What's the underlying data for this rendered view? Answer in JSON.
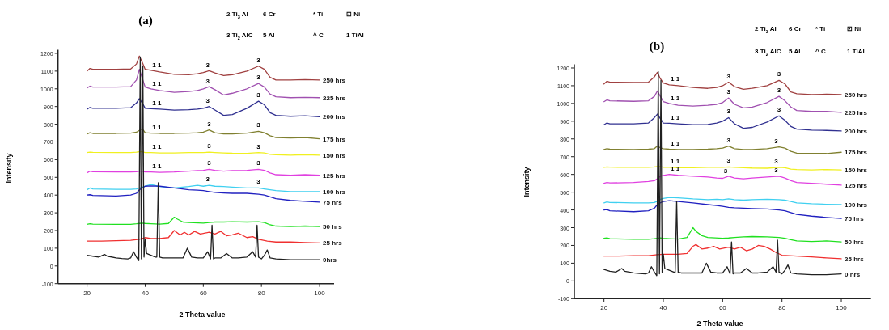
{
  "chart_data": [
    {
      "type": "line",
      "title": "(a)",
      "xlabel": "2 Theta value",
      "ylabel": "Intensity",
      "xlim": [
        10,
        105
      ],
      "xticks": [
        20,
        40,
        60,
        80,
        100
      ],
      "ylim": [
        -100,
        1220
      ],
      "yticks": [
        -100,
        0,
        100,
        200,
        300,
        400,
        500,
        600,
        700,
        800,
        900,
        1000,
        1100,
        1200
      ],
      "annotations": [
        "2 Ti$_{3}$Al",
        "6 Cr",
        "* Ti",
        "⊡ Ni",
        "3 Ti$_{2}$AlC",
        "5 Al",
        "^ C",
        "1 TiAl",
        {
          "text": "1 1",
          "x": 44,
          "y": 1098
        },
        {
          "text": "3",
          "x": 61.5,
          "y": 1100
        },
        {
          "text": "3",
          "x": 79,
          "y": 1128
        },
        {
          "text": "1 1",
          "x": 44,
          "y": 993
        },
        {
          "text": "3",
          "x": 61.5,
          "y": 1009
        },
        {
          "text": "3",
          "x": 79,
          "y": 1030
        },
        {
          "text": "1 1",
          "x": 44,
          "y": 886
        },
        {
          "text": "3",
          "x": 61.5,
          "y": 898
        },
        {
          "text": "3",
          "x": 79,
          "y": 930
        },
        {
          "text": "1 1",
          "x": 44,
          "y": 749
        },
        {
          "text": "3",
          "x": 62,
          "y": 768
        },
        {
          "text": "3",
          "x": 79,
          "y": 760
        },
        {
          "text": "1 1",
          "x": 44,
          "y": 639
        },
        {
          "text": "3",
          "x": 62,
          "y": 642
        },
        {
          "text": "3",
          "x": 79,
          "y": 640
        },
        {
          "text": "1 1",
          "x": 44,
          "y": 529
        },
        {
          "text": "3",
          "x": 62,
          "y": 545
        },
        {
          "text": "3",
          "x": 79,
          "y": 545
        },
        {
          "text": "3",
          "x": 61.5,
          "y": 454
        },
        {
          "text": "3",
          "x": 79,
          "y": 440
        }
      ],
      "series": [
        {
          "name": "250 hrs",
          "color": "#a04040",
          "x": [
            20,
            21,
            22,
            30,
            35,
            37,
            38,
            39,
            40,
            42,
            45,
            50,
            55,
            58,
            60,
            62,
            64,
            67,
            70,
            75,
            79,
            81,
            83,
            85,
            90,
            95,
            100
          ],
          "values": [
            1100,
            1115,
            1110,
            1110,
            1112,
            1140,
            1185,
            1150,
            1110,
            1105,
            1095,
            1082,
            1080,
            1085,
            1092,
            1102,
            1090,
            1075,
            1080,
            1100,
            1128,
            1110,
            1065,
            1050,
            1050,
            1052,
            1050
          ]
        },
        {
          "name": "225 hrs",
          "color": "#a050b0",
          "x": [
            20,
            21,
            22,
            30,
            35,
            37,
            38,
            39,
            40,
            42,
            45,
            50,
            55,
            58,
            60,
            62,
            64,
            67,
            70,
            75,
            79,
            81,
            83,
            85,
            90,
            95,
            100
          ],
          "values": [
            1005,
            1015,
            1010,
            1010,
            1012,
            1050,
            1110,
            1060,
            1010,
            1000,
            990,
            980,
            985,
            990,
            1000,
            1012,
            995,
            965,
            975,
            1000,
            1030,
            1010,
            970,
            955,
            950,
            952,
            950
          ]
        },
        {
          "name": "200 hrs",
          "color": "#303090",
          "x": [
            20,
            21,
            22,
            30,
            35,
            37,
            38,
            39,
            40,
            42,
            45,
            50,
            55,
            58,
            60,
            62,
            64,
            67,
            70,
            75,
            79,
            81,
            83,
            85,
            90,
            95,
            100
          ],
          "values": [
            885,
            895,
            890,
            890,
            893,
            920,
            945,
            920,
            890,
            888,
            885,
            880,
            882,
            885,
            890,
            900,
            880,
            850,
            855,
            890,
            930,
            910,
            865,
            850,
            845,
            848,
            842
          ]
        },
        {
          "name": "175 hrs",
          "color": "#808030",
          "x": [
            20,
            21,
            22,
            30,
            35,
            37,
            38,
            39,
            40,
            42,
            45,
            50,
            55,
            58,
            60,
            62,
            64,
            67,
            70,
            75,
            79,
            81,
            83,
            85,
            90,
            95,
            100
          ],
          "values": [
            745,
            752,
            748,
            748,
            750,
            755,
            765,
            775,
            752,
            750,
            748,
            748,
            750,
            752,
            755,
            768,
            752,
            745,
            745,
            750,
            760,
            752,
            735,
            725,
            722,
            725,
            718
          ]
        },
        {
          "name": "150 hrs",
          "color": "#f0f020",
          "x": [
            20,
            21,
            22,
            30,
            35,
            37,
            38,
            39,
            40,
            42,
            45,
            50,
            55,
            58,
            60,
            62,
            64,
            67,
            70,
            75,
            79,
            81,
            83,
            85,
            90,
            95,
            100
          ],
          "values": [
            640,
            642,
            641,
            640,
            640,
            642,
            645,
            645,
            640,
            640,
            638,
            638,
            640,
            640,
            640,
            642,
            640,
            638,
            636,
            635,
            640,
            638,
            630,
            628,
            625,
            628,
            625
          ]
        },
        {
          "name": "125 hrs",
          "color": "#e040e0",
          "x": [
            20,
            21,
            22,
            30,
            35,
            37,
            38,
            39,
            40,
            42,
            45,
            50,
            55,
            58,
            60,
            62,
            64,
            67,
            70,
            75,
            79,
            81,
            83,
            85,
            90,
            95,
            100
          ],
          "values": [
            525,
            535,
            532,
            530,
            530,
            532,
            535,
            535,
            530,
            530,
            528,
            530,
            535,
            538,
            540,
            545,
            540,
            535,
            538,
            540,
            545,
            540,
            525,
            515,
            512,
            515,
            512
          ]
        },
        {
          "name": "100 hrs",
          "color": "#40d0f0",
          "x": [
            20,
            21,
            22,
            30,
            35,
            37,
            38,
            39,
            40,
            42,
            45,
            50,
            55,
            58,
            60,
            62,
            64,
            67,
            70,
            75,
            79,
            81,
            83,
            85,
            90,
            95,
            100
          ],
          "values": [
            430,
            440,
            435,
            432,
            432,
            435,
            440,
            445,
            450,
            460,
            448,
            440,
            448,
            455,
            450,
            455,
            450,
            448,
            445,
            440,
            440,
            435,
            430,
            425,
            420,
            420,
            420
          ]
        },
        {
          "name": "75 hrs",
          "color": "#2020c0",
          "x": [
            20,
            21,
            22,
            30,
            35,
            37,
            38,
            39,
            40,
            42,
            45,
            50,
            55,
            58,
            60,
            62,
            64,
            67,
            70,
            75,
            79,
            81,
            83,
            85,
            90,
            95,
            100
          ],
          "values": [
            400,
            402,
            398,
            395,
            400,
            410,
            430,
            440,
            450,
            452,
            450,
            440,
            430,
            428,
            425,
            420,
            415,
            412,
            410,
            410,
            405,
            400,
            390,
            380,
            370,
            365,
            360
          ]
        },
        {
          "name": "50 hrs",
          "color": "#20e020",
          "x": [
            20,
            21,
            22,
            30,
            35,
            37,
            38,
            39,
            40,
            42,
            45,
            48,
            50,
            51,
            53,
            55,
            60,
            62,
            64,
            67,
            70,
            75,
            79,
            81,
            83,
            85,
            90,
            95,
            100
          ],
          "values": [
            235,
            238,
            236,
            235,
            235,
            238,
            240,
            242,
            240,
            238,
            236,
            240,
            275,
            265,
            248,
            245,
            242,
            245,
            248,
            248,
            250,
            248,
            250,
            245,
            232,
            225,
            222,
            225,
            222
          ]
        },
        {
          "name": "25 hrs",
          "color": "#f03030",
          "x": [
            20,
            25,
            30,
            35,
            38,
            40,
            42,
            45,
            48,
            50,
            52,
            53.5,
            55,
            57,
            59,
            62,
            64,
            66,
            68,
            70,
            72,
            75,
            77,
            79,
            82,
            85,
            90,
            95,
            100
          ],
          "values": [
            140,
            140,
            142,
            145,
            150,
            160,
            155,
            155,
            160,
            200,
            175,
            190,
            175,
            195,
            180,
            190,
            180,
            195,
            170,
            175,
            185,
            160,
            165,
            150,
            140,
            135,
            135,
            132,
            130
          ]
        },
        {
          "name": "0hrs",
          "color": "#202020",
          "x": [
            20,
            22,
            24,
            26,
            27,
            30,
            32,
            34,
            35,
            36,
            37,
            37.8,
            38.3,
            38.7,
            39.2,
            39.6,
            40,
            40.5,
            42,
            43.5,
            44,
            44.5,
            45,
            46,
            50,
            53,
            54.5,
            56,
            58,
            60,
            61.5,
            62.5,
            63,
            63.5,
            64,
            66,
            68,
            70,
            72,
            75,
            77,
            78,
            78.5,
            79,
            80,
            81,
            82,
            83,
            85,
            90,
            95,
            100
          ],
          "values": [
            60,
            55,
            50,
            65,
            55,
            45,
            42,
            40,
            45,
            80,
            50,
            30,
            1180,
            40,
            1130,
            50,
            150,
            70,
            60,
            50,
            50,
            470,
            50,
            45,
            45,
            45,
            100,
            50,
            45,
            45,
            80,
            40,
            230,
            40,
            45,
            45,
            70,
            45,
            45,
            50,
            80,
            50,
            230,
            50,
            40,
            60,
            90,
            45,
            40,
            35,
            35,
            35
          ]
        }
      ]
    },
    {
      "type": "line",
      "title": "(b)",
      "xlabel": "2 Theta value",
      "ylabel": "Intensity",
      "xlim": [
        10,
        110
      ],
      "xticks": [
        20,
        40,
        60,
        80,
        100
      ],
      "ylim": [
        -100,
        1220
      ],
      "yticks": [
        -100,
        0,
        100,
        200,
        300,
        400,
        500,
        600,
        700,
        800,
        900,
        1000,
        1100,
        1200
      ],
      "annotations": [
        "2 Ti$_{3}$Al",
        "6 Cr",
        "* Ti",
        "⊡ Ni",
        "3 Ti$_{2}$AlC",
        "5 Al",
        "^ C",
        "1 TiAl",
        {
          "text": "1 1",
          "x": 44,
          "y": 1102
        },
        {
          "text": "3",
          "x": 62,
          "y": 1120
        },
        {
          "text": "3",
          "x": 79,
          "y": 1130
        },
        {
          "text": "1 1",
          "x": 44,
          "y": 993
        },
        {
          "text": "3",
          "x": 62,
          "y": 1030
        },
        {
          "text": "3",
          "x": 79,
          "y": 1040
        },
        {
          "text": "1 1",
          "x": 44,
          "y": 886
        },
        {
          "text": "3",
          "x": 62,
          "y": 920
        },
        {
          "text": "3",
          "x": 79,
          "y": 930
        },
        {
          "text": "1 1",
          "x": 44,
          "y": 741
        },
        {
          "text": "3",
          "x": 62,
          "y": 760
        },
        {
          "text": "3",
          "x": 78,
          "y": 753
        },
        {
          "text": "1 1",
          "x": 44,
          "y": 639
        },
        {
          "text": "3",
          "x": 62,
          "y": 642
        },
        {
          "text": "3",
          "x": 78,
          "y": 639
        },
        {
          "text": "1 1",
          "x": 44,
          "y": 597
        },
        {
          "text": "3",
          "x": 61,
          "y": 584
        },
        {
          "text": "3",
          "x": 78,
          "y": 589
        }
      ],
      "series": [
        {
          "name": "250 hrs",
          "color": "#a04040",
          "x": [
            20,
            21,
            22,
            30,
            35,
            37,
            38,
            39,
            40,
            42,
            45,
            50,
            55,
            58,
            60,
            62,
            64,
            67,
            70,
            75,
            79,
            81,
            83,
            85,
            90,
            95,
            100
          ],
          "values": [
            1110,
            1125,
            1120,
            1118,
            1120,
            1150,
            1175,
            1140,
            1115,
            1105,
            1100,
            1090,
            1085,
            1090,
            1100,
            1120,
            1095,
            1080,
            1085,
            1100,
            1130,
            1110,
            1065,
            1055,
            1050,
            1052,
            1050
          ]
        },
        {
          "name": "225 hrs",
          "color": "#a050b0",
          "x": [
            20,
            21,
            22,
            30,
            35,
            37,
            38,
            39,
            40,
            42,
            45,
            50,
            55,
            58,
            60,
            62,
            64,
            67,
            70,
            75,
            79,
            81,
            83,
            85,
            90,
            95,
            100
          ],
          "values": [
            1010,
            1020,
            1015,
            1012,
            1015,
            1040,
            1070,
            1040,
            1010,
            1000,
            990,
            985,
            990,
            995,
            1005,
            1030,
            995,
            975,
            980,
            1005,
            1040,
            1015,
            980,
            960,
            955,
            955,
            950
          ]
        },
        {
          "name": "200 hrs",
          "color": "#303090",
          "x": [
            20,
            21,
            22,
            30,
            35,
            37,
            38,
            39,
            40,
            42,
            45,
            50,
            55,
            58,
            60,
            62,
            64,
            67,
            70,
            75,
            79,
            81,
            83,
            85,
            90,
            95,
            100
          ],
          "values": [
            880,
            890,
            885,
            885,
            890,
            920,
            940,
            915,
            890,
            888,
            885,
            880,
            882,
            890,
            900,
            920,
            885,
            860,
            865,
            895,
            930,
            905,
            870,
            855,
            850,
            848,
            845
          ]
        },
        {
          "name": "175 hrs",
          "color": "#808030",
          "x": [
            20,
            21,
            22,
            30,
            35,
            37,
            38,
            39,
            40,
            42,
            45,
            50,
            55,
            58,
            60,
            62,
            64,
            67,
            70,
            75,
            79,
            81,
            83,
            85,
            90,
            95,
            100
          ],
          "values": [
            740,
            745,
            742,
            740,
            742,
            745,
            760,
            750,
            745,
            742,
            740,
            740,
            742,
            745,
            748,
            760,
            745,
            740,
            740,
            745,
            755,
            748,
            730,
            720,
            718,
            718,
            725
          ]
        },
        {
          "name": "150 hrs",
          "color": "#f0f020",
          "x": [
            20,
            21,
            22,
            30,
            35,
            37,
            38,
            39,
            40,
            42,
            45,
            50,
            55,
            58,
            60,
            62,
            64,
            67,
            70,
            75,
            79,
            81,
            83,
            85,
            90,
            95,
            100
          ],
          "values": [
            640,
            642,
            641,
            640,
            640,
            642,
            645,
            645,
            640,
            640,
            638,
            638,
            640,
            640,
            640,
            642,
            640,
            638,
            636,
            635,
            640,
            638,
            630,
            628,
            625,
            628,
            625
          ]
        },
        {
          "name": "125 hrs",
          "color": "#e040e0",
          "x": [
            20,
            21,
            22,
            30,
            35,
            37,
            38,
            39,
            40,
            42,
            45,
            50,
            55,
            58,
            60,
            62,
            64,
            67,
            70,
            75,
            79,
            81,
            83,
            85,
            90,
            95,
            100
          ],
          "values": [
            550,
            555,
            552,
            555,
            560,
            565,
            575,
            590,
            595,
            600,
            595,
            590,
            585,
            580,
            578,
            590,
            580,
            575,
            580,
            585,
            590,
            580,
            565,
            555,
            550,
            545,
            540
          ]
        },
        {
          "name": "100 hrs",
          "color": "#40d0f0",
          "x": [
            20,
            21,
            22,
            30,
            35,
            37,
            38,
            39,
            40,
            42,
            45,
            50,
            55,
            58,
            60,
            62,
            64,
            67,
            70,
            75,
            79,
            81,
            83,
            85,
            90,
            95,
            100
          ],
          "values": [
            440,
            445,
            442,
            440,
            440,
            442,
            450,
            460,
            465,
            470,
            468,
            462,
            458,
            460,
            458,
            462,
            458,
            455,
            458,
            460,
            458,
            455,
            448,
            440,
            435,
            432,
            430
          ]
        },
        {
          "name": "75 hrs",
          "color": "#2020c0",
          "x": [
            20,
            21,
            22,
            30,
            35,
            37,
            38,
            39,
            40,
            42,
            45,
            50,
            55,
            58,
            60,
            62,
            64,
            67,
            70,
            75,
            79,
            81,
            83,
            85,
            90,
            95,
            100
          ],
          "values": [
            400,
            402,
            395,
            390,
            395,
            410,
            430,
            440,
            448,
            452,
            448,
            440,
            430,
            425,
            420,
            415,
            412,
            410,
            408,
            405,
            400,
            395,
            385,
            375,
            365,
            358,
            352
          ]
        },
        {
          "name": "50 hrs",
          "color": "#20e020",
          "x": [
            20,
            21,
            22,
            30,
            35,
            37,
            38,
            39,
            40,
            42,
            45,
            48,
            50,
            51,
            53,
            55,
            60,
            62,
            64,
            67,
            70,
            75,
            79,
            81,
            83,
            85,
            90,
            95,
            100
          ],
          "values": [
            240,
            242,
            238,
            235,
            235,
            238,
            240,
            242,
            240,
            238,
            236,
            245,
            300,
            280,
            255,
            245,
            240,
            242,
            245,
            248,
            250,
            248,
            245,
            240,
            232,
            225,
            222,
            225,
            220
          ]
        },
        {
          "name": "25 hrs",
          "color": "#f03030",
          "x": [
            20,
            25,
            30,
            35,
            38,
            40,
            42,
            45,
            48,
            50,
            51,
            53,
            55,
            57,
            59,
            62,
            64,
            66,
            68,
            70,
            72,
            74,
            76,
            78,
            80,
            85,
            90,
            95,
            100
          ],
          "values": [
            140,
            140,
            142,
            142,
            148,
            150,
            150,
            150,
            155,
            195,
            205,
            180,
            185,
            195,
            180,
            190,
            180,
            190,
            170,
            180,
            200,
            195,
            180,
            160,
            145,
            140,
            135,
            130,
            125
          ]
        },
        {
          "name": "0 hrs",
          "color": "#202020",
          "x": [
            20,
            22,
            24,
            26,
            27,
            30,
            32,
            34,
            35,
            36,
            37,
            37.8,
            38.3,
            38.7,
            39.2,
            39.6,
            40,
            40.5,
            42,
            43.5,
            44,
            44.5,
            45,
            46,
            50,
            53,
            54.5,
            56,
            58,
            60,
            61.5,
            62.5,
            63,
            63.5,
            64,
            66,
            68,
            70,
            72,
            75,
            77,
            78,
            78.5,
            79,
            80,
            81,
            82,
            83,
            85,
            90,
            95,
            100
          ],
          "values": [
            65,
            55,
            50,
            70,
            55,
            45,
            42,
            40,
            45,
            80,
            50,
            30,
            1180,
            40,
            1130,
            50,
            150,
            70,
            60,
            50,
            50,
            450,
            50,
            45,
            45,
            45,
            100,
            50,
            45,
            45,
            80,
            40,
            220,
            40,
            45,
            45,
            70,
            45,
            45,
            50,
            80,
            50,
            230,
            50,
            40,
            60,
            90,
            45,
            40,
            35,
            35,
            40
          ]
        }
      ]
    }
  ]
}
